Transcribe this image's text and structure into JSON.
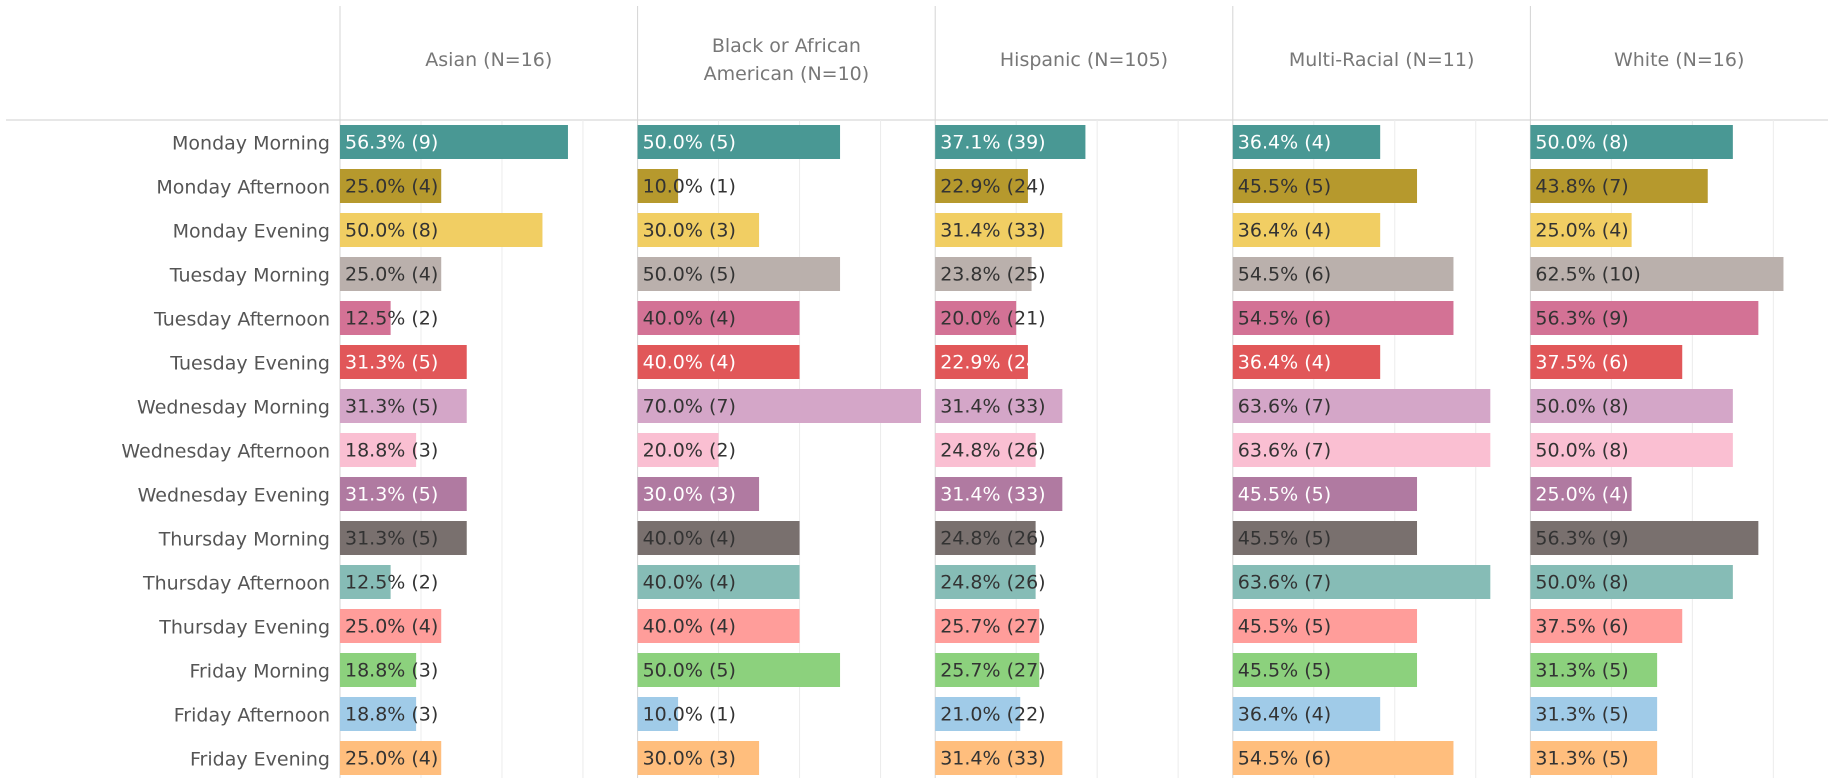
{
  "chart_data": {
    "type": "bar",
    "orientation": "horizontal",
    "categories": [
      "Monday Morning",
      "Monday Afternoon",
      "Monday Evening",
      "Tuesday Morning",
      "Tuesday Afternoon",
      "Tuesday Evening",
      "Wednesday Morning",
      "Wednesday Afternoon",
      "Wednesday Evening",
      "Thursday Morning",
      "Thursday Afternoon",
      "Thursday Evening",
      "Friday Morning",
      "Friday Afternoon",
      "Friday Evening"
    ],
    "colors": [
      "#499894",
      "#b6992d",
      "#f1ce63",
      "#bab0ac",
      "#d37295",
      "#e15759",
      "#d4a6c8",
      "#fabfd2",
      "#b07aa1",
      "#79706e",
      "#86bcb6",
      "#ff9d9a",
      "#8cd17d",
      "#a0cbe8",
      "#ffbe7d"
    ],
    "label_colors": [
      "#ffffff",
      "#333333",
      "#333333",
      "#333333",
      "#333333",
      "#ffffff",
      "#333333",
      "#333333",
      "#ffffff",
      "#333333",
      "#333333",
      "#333333",
      "#333333",
      "#333333",
      "#333333"
    ],
    "xlim": [
      0,
      73.5
    ],
    "xticks": [
      0,
      20,
      40,
      60
    ],
    "grid": true,
    "series": [
      {
        "name": "Asian (N=16)",
        "values": [
          56.3,
          25.0,
          50.0,
          25.0,
          12.5,
          31.3,
          31.3,
          18.8,
          31.3,
          31.3,
          12.5,
          25.0,
          18.8,
          18.8,
          25.0
        ],
        "value_labels": [
          "56.3% (9)",
          "25.0% (4)",
          "50.0% (8)",
          "25.0% (4)",
          "12.5% (2)",
          "31.3% (5)",
          "31.3% (5)",
          "18.8% (3)",
          "31.3% (5)",
          "31.3% (5)",
          "12.5% (2)",
          "25.0% (4)",
          "18.8% (3)",
          "18.8% (3)",
          "25.0% (4)"
        ]
      },
      {
        "name": "Black or African American (N=10)",
        "values": [
          50.0,
          10.0,
          30.0,
          50.0,
          40.0,
          40.0,
          70.0,
          20.0,
          30.0,
          40.0,
          40.0,
          40.0,
          50.0,
          10.0,
          30.0
        ],
        "value_labels": [
          "50.0% (5)",
          "10.0% (1)",
          "30.0% (3)",
          "50.0% (5)",
          "40.0% (4)",
          "40.0% (4)",
          "70.0% (7)",
          "20.0% (2)",
          "30.0% (3)",
          "40.0% (4)",
          "40.0% (4)",
          "40.0% (4)",
          "50.0% (5)",
          "10.0% (1)",
          "30.0% (3)"
        ]
      },
      {
        "name": "Hispanic (N=105)",
        "values": [
          37.1,
          22.9,
          31.4,
          23.8,
          20.0,
          22.9,
          31.4,
          24.8,
          31.4,
          24.8,
          24.8,
          25.7,
          25.7,
          21.0,
          31.4
        ],
        "value_labels": [
          "37.1% (39)",
          "22.9% (24)",
          "31.4% (33)",
          "23.8% (25)",
          "20.0% (21)",
          "22.9% (24)",
          "31.4% (33)",
          "24.8% (26)",
          "31.4% (33)",
          "24.8% (26)",
          "24.8% (26)",
          "25.7% (27)",
          "25.7% (27)",
          "21.0% (22)",
          "31.4% (33)"
        ]
      },
      {
        "name": "Multi-Racial (N=11)",
        "values": [
          36.4,
          45.5,
          36.4,
          54.5,
          54.5,
          36.4,
          63.6,
          63.6,
          45.5,
          45.5,
          63.6,
          45.5,
          45.5,
          36.4,
          54.5
        ],
        "value_labels": [
          "36.4% (4)",
          "45.5% (5)",
          "36.4% (4)",
          "54.5% (6)",
          "54.5% (6)",
          "36.4% (4)",
          "63.6% (7)",
          "63.6% (7)",
          "45.5% (5)",
          "45.5% (5)",
          "63.6% (7)",
          "45.5% (5)",
          "45.5% (5)",
          "36.4% (4)",
          "54.5% (6)"
        ]
      },
      {
        "name": "White (N=16)",
        "values": [
          50.0,
          43.8,
          25.0,
          62.5,
          56.3,
          37.5,
          50.0,
          50.0,
          25.0,
          56.3,
          50.0,
          37.5,
          31.3,
          31.3,
          31.3
        ],
        "value_labels": [
          "50.0% (8)",
          "43.8% (7)",
          "25.0% (4)",
          "62.5% (10)",
          "56.3% (9)",
          "37.5% (6)",
          "50.0% (8)",
          "50.0% (8)",
          "25.0% (4)",
          "56.3% (9)",
          "50.0% (8)",
          "37.5% (6)",
          "31.3% (5)",
          "31.3% (5)",
          "31.3% (5)"
        ]
      }
    ]
  }
}
